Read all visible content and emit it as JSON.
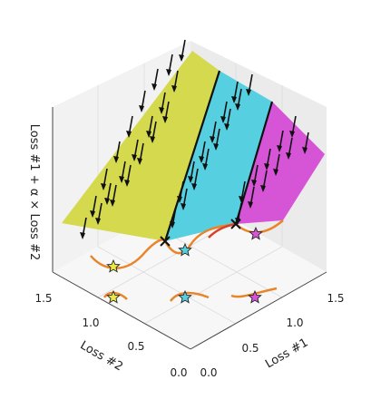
{
  "chart_data": {
    "type": "3d-surface",
    "title": "",
    "xlabel": "Loss #1",
    "ylabel": "Loss #2",
    "zlabel": "Loss #1 + α × Loss #2",
    "x_ticks": [
      "0.0",
      "0.5",
      "1.0",
      "1.5"
    ],
    "y_ticks": [
      "0.0",
      "0.5",
      "1.0",
      "1.5"
    ],
    "xlim": [
      0,
      1.6
    ],
    "ylim": [
      0,
      1.6
    ],
    "grid": true,
    "regions": [
      {
        "name": "",
        "color": "#d4d94e",
        "x_range": [
          0.0,
          0.55
        ]
      },
      {
        "name": "",
        "color": "#56d0e0",
        "x_range": [
          0.55,
          1.1
        ]
      },
      {
        "name": "",
        "color": "#d655d6",
        "x_range": [
          1.1,
          1.6
        ]
      }
    ],
    "star_points": [
      {
        "color": "#e8e84a",
        "loss1": 0.28,
        "loss2": 1.15
      },
      {
        "color": "#56d0e0",
        "loss1": 0.82,
        "loss2": 0.82
      },
      {
        "color": "#d655d6",
        "loss1": 1.33,
        "loss2": 0.62
      }
    ],
    "cross_points": [
      {
        "loss1": 0.55
      },
      {
        "loss1": 1.1
      }
    ]
  }
}
